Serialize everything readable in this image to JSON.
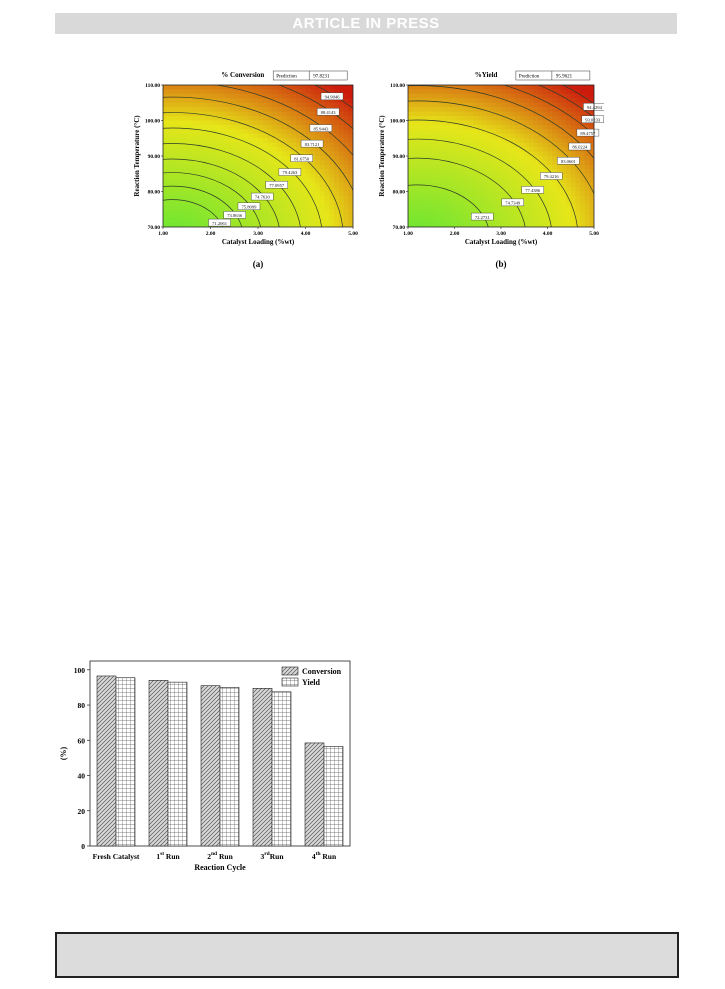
{
  "banner": {
    "text": "ARTICLE IN PRESS"
  },
  "chart_data": [
    {
      "type": "heatmap",
      "panel": "(a)",
      "title": "% Conversion",
      "prediction_label": "Prediction",
      "prediction_value": "97.8231",
      "xlabel": "Catalyst Loading (%wt)",
      "ylabel": "Reaction Temperature (°C)",
      "xlim": [
        1.0,
        5.0
      ],
      "ylim": [
        70.0,
        110.0
      ],
      "xticks": [
        "1.00",
        "2.00",
        "3.00",
        "4.00",
        "5.00"
      ],
      "yticks": [
        "70.00",
        "80.00",
        "90.00",
        "100.00",
        "110.00"
      ],
      "colors": {
        "low": "#66e633",
        "mid": "#e6e619",
        "high": "#cc1a0d"
      },
      "contours": [
        {
          "label": "71.2061",
          "level": 0.2
        },
        {
          "label": "73.8636",
          "level": 0.27
        },
        {
          "label": "75.8099",
          "level": 0.34
        },
        {
          "label": "74.7630",
          "level": 0.41
        },
        {
          "label": "77.0957",
          "level": 0.49
        },
        {
          "label": "79.4263",
          "level": 0.57
        },
        {
          "label": "81.6750",
          "level": 0.65
        },
        {
          "label": "83.7121",
          "level": 0.73
        },
        {
          "label": "85.9443",
          "level": 0.81
        },
        {
          "label": "88.4143",
          "level": 0.89
        },
        {
          "label": "94.9046",
          "level": 0.96
        }
      ]
    },
    {
      "type": "heatmap",
      "panel": "(b)",
      "title": "%Yield",
      "prediction_label": "Prediction",
      "prediction_value": "95.9621",
      "xlabel": "Catalyst Loading (%wt)",
      "ylabel": "Reaction Temperature (°C)",
      "xlim": [
        1.0,
        5.0
      ],
      "ylim": [
        70.0,
        110.0
      ],
      "xticks": [
        "1.00",
        "2.00",
        "3.00",
        "4.00",
        "5.00"
      ],
      "yticks": [
        "70.00",
        "80.00",
        "90.00",
        "100.00",
        "110.00"
      ],
      "colors": {
        "low": "#66e633",
        "mid": "#e6e619",
        "high": "#cc1a0d"
      },
      "contours": [
        {
          "label": "72.2731",
          "level": 0.28
        },
        {
          "label": "74.7349",
          "level": 0.42
        },
        {
          "label": "77.4386",
          "level": 0.52
        },
        {
          "label": "79.4216",
          "level": 0.62
        },
        {
          "label": "83.0601",
          "level": 0.72
        },
        {
          "label": "86.0224",
          "level": 0.8
        },
        {
          "label": "89.4757",
          "level": 0.87
        },
        {
          "label": "93.0233",
          "level": 0.93
        },
        {
          "label": "94.4294",
          "level": 0.98
        }
      ]
    },
    {
      "type": "bar",
      "categories": [
        "Fresh Catalyst",
        "1st Run",
        "2nd Run",
        "3rd Run",
        "4th Run"
      ],
      "category_parts": [
        {
          "main": "Fresh Catalyst",
          "sup": "",
          "after": ""
        },
        {
          "main": "1",
          "sup": "st",
          "after": " Run"
        },
        {
          "main": "2",
          "sup": "nd",
          "after": " Run"
        },
        {
          "main": "3",
          "sup": "rd",
          "after": "Run"
        },
        {
          "main": "4",
          "sup": "th",
          "after": " Run"
        }
      ],
      "series": [
        {
          "name": "Conversion",
          "values": [
            96.5,
            94.0,
            91.0,
            89.5,
            58.5
          ]
        },
        {
          "name": "Yield",
          "values": [
            95.5,
            93.0,
            90.0,
            87.5,
            56.5
          ]
        }
      ],
      "xlabel": "Reaction Cycle",
      "ylabel": "(%)",
      "ylim": [
        0,
        105
      ],
      "yticks": [
        0,
        20,
        40,
        60,
        80,
        100
      ],
      "legend_position": "top-right"
    }
  ]
}
